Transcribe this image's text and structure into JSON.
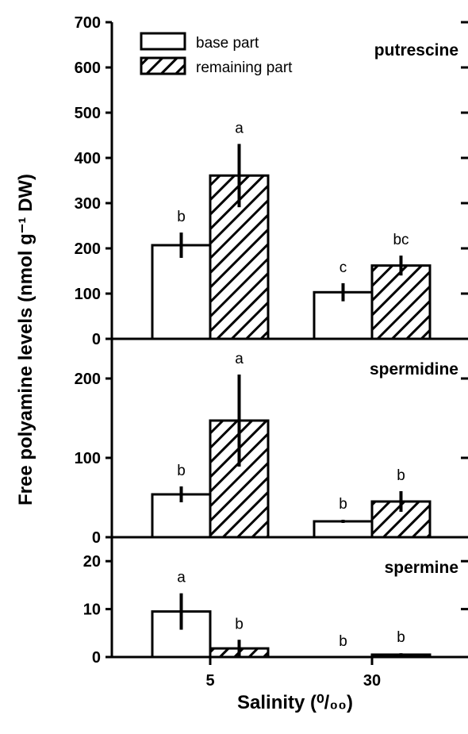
{
  "chart_data": {
    "type": "bar",
    "xlabel": "Salinity (⁰/₀₀)",
    "ylabel": "Free polyamine levels (nmol g⁻¹ DW)",
    "categories": [
      "5",
      "30"
    ],
    "legend": {
      "placement": "top-left",
      "entries": [
        {
          "name": "base part",
          "pattern": "open"
        },
        {
          "name": "remaining part",
          "pattern": "hatched"
        }
      ]
    },
    "grid": false,
    "panels": [
      {
        "title": "putrescine",
        "ylim": [
          0,
          700
        ],
        "yticks": [
          0,
          100,
          200,
          300,
          400,
          500,
          600,
          700
        ],
        "series": [
          {
            "name": "base part",
            "values": [
              207,
              103
            ],
            "errors": [
              28,
              20
            ],
            "labels": [
              "b",
              "c"
            ]
          },
          {
            "name": "remaining part",
            "values": [
              361,
              162
            ],
            "errors": [
              70,
              22
            ],
            "labels": [
              "a",
              "bc"
            ]
          }
        ]
      },
      {
        "title": "spermidine",
        "ylim": [
          0,
          250
        ],
        "yticks": [
          0,
          100,
          200
        ],
        "series": [
          {
            "name": "base part",
            "values": [
              54,
              20
            ],
            "errors": [
              10,
              2
            ],
            "labels": [
              "b",
              "b"
            ]
          },
          {
            "name": "remaining part",
            "values": [
              147,
              45
            ],
            "errors": [
              58,
              13
            ],
            "labels": [
              "a",
              "b"
            ]
          }
        ]
      },
      {
        "title": "spermine",
        "ylim": [
          0,
          25
        ],
        "yticks": [
          0,
          10,
          20
        ],
        "series": [
          {
            "name": "base part",
            "values": [
              9.5,
              0
            ],
            "errors": [
              3.8,
              0
            ],
            "labels": [
              "a",
              "b"
            ]
          },
          {
            "name": "remaining part",
            "values": [
              1.8,
              0.5
            ],
            "errors": [
              1.8,
              0.3
            ],
            "labels": [
              "b",
              "b"
            ]
          }
        ]
      }
    ]
  }
}
